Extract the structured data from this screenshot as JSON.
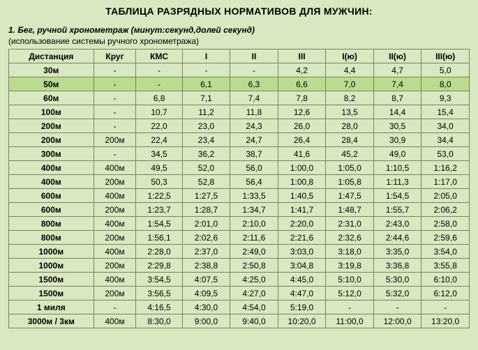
{
  "title": "ТАБЛИЦА РАЗРЯДНЫХ НОРМАТИВОВ ДЛЯ МУЖЧИН:",
  "subtitle": "1. Бег, ручной хронометраж (минут:секунд,долей секунд)",
  "note": "(использование системы ручного хронометража)",
  "headers": [
    "Дистанция",
    "Круг",
    "КМС",
    "I",
    "II",
    "III",
    "I(ю)",
    "II(ю)",
    "III(ю)"
  ],
  "highlight_rows": [
    1
  ],
  "rows": [
    [
      "30м",
      "-",
      "-",
      "-",
      "-",
      "4,2",
      "4,4",
      "4,7",
      "5,0"
    ],
    [
      "50м",
      "-",
      "-",
      "6,1",
      "6,3",
      "6,6",
      "7,0",
      "7,4",
      "8,0"
    ],
    [
      "60м",
      "-",
      "6,8",
      "7,1",
      "7,4",
      "7,8",
      "8,2",
      "8,7",
      "9,3"
    ],
    [
      "100м",
      "-",
      "10,7",
      "11,2",
      "11,8",
      "12,6",
      "13,5",
      "14,4",
      "15,4"
    ],
    [
      "200м",
      "-",
      "22,0",
      "23,0",
      "24,3",
      "26,0",
      "28,0",
      "30,5",
      "34,0"
    ],
    [
      "200м",
      "200м",
      "22,4",
      "23,4",
      "24,7",
      "26,4",
      "28,4",
      "30,9",
      "34,4"
    ],
    [
      "300м",
      "-",
      "34,5",
      "36,2",
      "38,7",
      "41,6",
      "45,2",
      "49,0",
      "53,0"
    ],
    [
      "400м",
      "400м",
      "49,5",
      "52,0",
      "56,0",
      "1:00,0",
      "1:05,0",
      "1:10,5",
      "1:16,2"
    ],
    [
      "400м",
      "200м",
      "50,3",
      "52,8",
      "56,4",
      "1:00,8",
      "1:05,8",
      "1:11,3",
      "1:17,0"
    ],
    [
      "600м",
      "400м",
      "1:22,5",
      "1:27,5",
      "1:33,5",
      "1:40,5",
      "1:47,5",
      "1:54,5",
      "2:05,0"
    ],
    [
      "600м",
      "200м",
      "1:23,7",
      "1:28,7",
      "1:34,7",
      "1:41,7",
      "1:48,7",
      "1:55,7",
      "2:06,2"
    ],
    [
      "800м",
      "400м",
      "1:54,5",
      "2:01,0",
      "2:10,0",
      "2:20,0",
      "2:31,0",
      "2:43,0",
      "2:58,0"
    ],
    [
      "800м",
      "200м",
      "1:56,1",
      "2:02,6",
      "2:11,6",
      "2:21,6",
      "2:32,6",
      "2:44,6",
      "2:59,6"
    ],
    [
      "1000м",
      "400м",
      "2:28,0",
      "2:37,0",
      "2:49,0",
      "3:03,0",
      "3:18,0",
      "3:35,0",
      "3:54,0"
    ],
    [
      "1000м",
      "200м",
      "2:29,8",
      "2:38,8",
      "2:50,8",
      "3:04,8",
      "3:19,8",
      "3:36,8",
      "3:55,8"
    ],
    [
      "1500м",
      "400м",
      "3:54,5",
      "4:07,5",
      "4:25,0",
      "4:45,0",
      "5:10,0",
      "5:30,0",
      "6:10,0"
    ],
    [
      "1500м",
      "200м",
      "3:56,5",
      "4:09,5",
      "4:27,0",
      "4:47,0",
      "5:12,0",
      "5:32,0",
      "6:12,0"
    ],
    [
      "1 миля",
      "-",
      "4:16,5",
      "4:30,0",
      "4:54,0",
      "5:19,0",
      "-",
      "-",
      "-"
    ],
    [
      "3000м / 3км",
      "400м",
      "8:30,0",
      "9:00,0",
      "9:40,0",
      "10:20,0",
      "11:00,0",
      "12:00,0",
      "13:20,0"
    ]
  ]
}
